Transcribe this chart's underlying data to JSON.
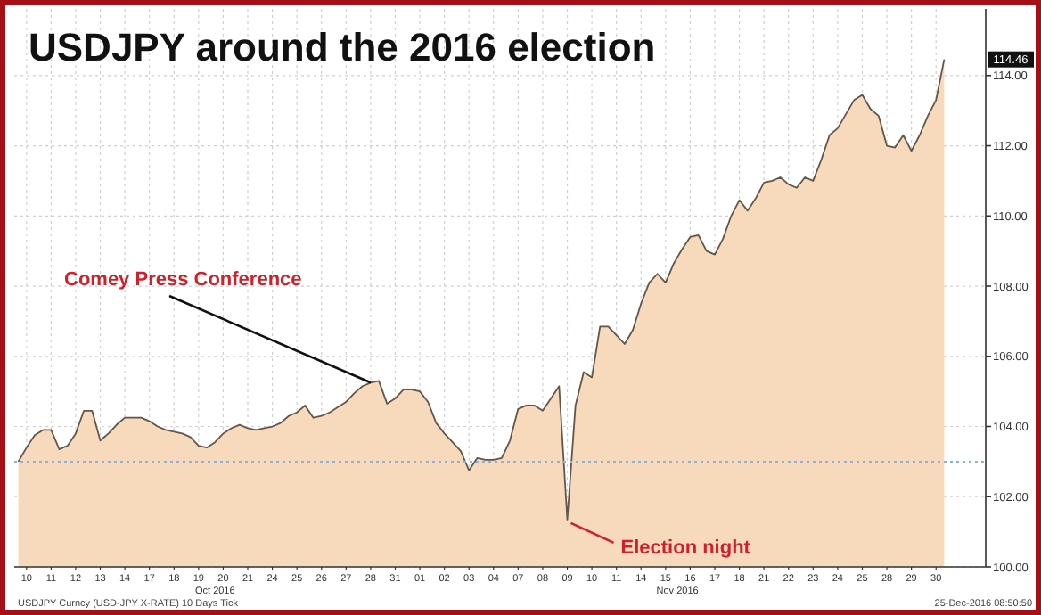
{
  "chart_data": {
    "type": "area",
    "title": "USDJPY around the 2016 election",
    "categories": [
      null,
      "10",
      null,
      null,
      "11",
      null,
      null,
      "12",
      null,
      null,
      "13",
      null,
      null,
      "14",
      null,
      null,
      "17",
      null,
      null,
      "18",
      null,
      null,
      "19",
      null,
      null,
      "20",
      null,
      null,
      "21",
      null,
      null,
      "24",
      null,
      null,
      "25",
      null,
      null,
      "26",
      null,
      null,
      "27",
      null,
      null,
      "28",
      null,
      null,
      "31",
      null,
      null,
      "01",
      null,
      null,
      "02",
      null,
      null,
      "03",
      null,
      null,
      "04",
      null,
      null,
      "07",
      null,
      null,
      "08",
      null,
      null,
      "09",
      null,
      null,
      "10",
      null,
      null,
      "11",
      null,
      null,
      "14",
      null,
      null,
      "15",
      null,
      null,
      "16",
      null,
      null,
      "17",
      null,
      null,
      "18",
      null,
      null,
      "21",
      null,
      null,
      "22",
      null,
      null,
      "23",
      null,
      null,
      "24",
      null,
      null,
      "25",
      null,
      null,
      "28",
      null,
      null,
      "29",
      null,
      null,
      "30",
      null
    ],
    "series": [
      {
        "color": "#f7d9bb",
        "values": [
          103.0,
          103.4,
          103.75,
          103.9,
          103.9,
          103.35,
          103.45,
          103.8,
          104.45,
          104.45,
          103.6,
          103.8,
          104.05,
          104.25,
          104.25,
          104.25,
          104.15,
          104.0,
          103.9,
          103.85,
          103.8,
          103.7,
          103.45,
          103.4,
          103.55,
          103.8,
          103.95,
          104.05,
          103.95,
          103.9,
          103.95,
          104.0,
          104.1,
          104.3,
          104.4,
          104.6,
          104.25,
          104.3,
          104.4,
          104.55,
          104.7,
          104.95,
          105.15,
          105.25,
          105.3,
          104.65,
          104.8,
          105.05,
          105.05,
          105.0,
          104.7,
          104.1,
          103.8,
          103.55,
          103.3,
          102.75,
          103.1,
          103.05,
          103.05,
          103.1,
          103.6,
          104.5,
          104.6,
          104.6,
          104.45,
          104.8,
          105.15,
          101.35,
          104.6,
          105.55,
          105.4,
          106.85,
          106.85,
          106.6,
          106.35,
          106.75,
          107.5,
          108.1,
          108.35,
          108.1,
          108.65,
          109.05,
          109.4,
          109.45,
          109.0,
          108.9,
          109.35,
          110.0,
          110.45,
          110.15,
          110.5,
          110.95,
          111.0,
          111.1,
          110.9,
          110.8,
          111.1,
          111.0,
          111.6,
          112.3,
          112.5,
          112.9,
          113.3,
          113.45,
          113.05,
          112.85,
          112.0,
          111.95,
          112.3,
          111.85,
          112.3,
          112.85,
          113.3,
          114.46
        ]
      }
    ],
    "ylim": [
      100,
      115.9
    ],
    "yticks": [
      {
        "value": 100,
        "label": "100.00"
      },
      {
        "value": 102,
        "label": "102.00"
      },
      {
        "value": 104,
        "label": "104.00"
      },
      {
        "value": 106,
        "label": "106.00"
      },
      {
        "value": 108,
        "label": "108.00"
      },
      {
        "value": 110,
        "label": "110.00"
      },
      {
        "value": 112,
        "label": "112.00"
      },
      {
        "value": 114,
        "label": "114.00"
      }
    ],
    "grid": true,
    "ref_lines": [
      {
        "axis": "y",
        "value": 103,
        "color": "#8fb0d8",
        "line_style": "dotted"
      }
    ],
    "annotations": [
      {
        "text": "Comey Press Conference",
        "x": "28",
        "y": 105.25
      },
      {
        "text": "Election night",
        "x": "09",
        "y": 101.35
      },
      "114.46",
      "Oct 2016",
      "Nov 2016",
      "USDJPY Curncy (USD-JPY X-RATE) 10 Days Tick",
      "25-Dec-2016 08:50:50"
    ]
  }
}
